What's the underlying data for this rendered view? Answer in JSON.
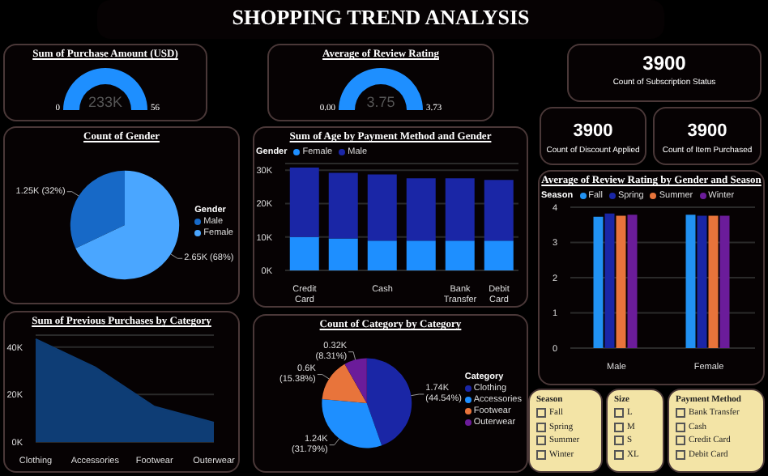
{
  "chart_data": [
    {
      "type": "other",
      "title": "SHOPPING TREND ANALYSIS"
    },
    {
      "type": "other",
      "title": "Sum of Purchase Amount (USD)",
      "annotations": [
        "0",
        "233K",
        "56"
      ]
    },
    {
      "type": "other",
      "title": "Average of Review Rating",
      "annotations": [
        "0.00",
        "3.75",
        "3.73"
      ]
    },
    {
      "type": "other",
      "title": "Count of Subscription Status",
      "annotations": [
        "3900"
      ]
    },
    {
      "type": "other",
      "title": "Count of Discount Applied",
      "annotations": [
        "3900"
      ]
    },
    {
      "type": "other",
      "title": "Count of Item Purchased",
      "annotations": [
        "3900"
      ]
    },
    {
      "type": "pie",
      "title": "Count of Gender",
      "categories": [
        "Male",
        "Female"
      ],
      "values": [
        1250,
        2650
      ],
      "value_labels": [
        "1.25K (32%)",
        "2.65K (68%)"
      ],
      "colors": [
        "#1769c7",
        "#4aa6ff"
      ],
      "legend": "right",
      "legend_title": "Gender"
    },
    {
      "type": "bar",
      "title": "Sum of Age by Payment Method and Gender",
      "stacked": true,
      "categories": [
        "Credit Card",
        null,
        "Cash",
        null,
        "Bank Transfer",
        "Debit Card"
      ],
      "series": [
        {
          "name": "Female",
          "color": "#1e8fff",
          "values": [
            10000,
            9600,
            8900,
            8900,
            8900,
            8900
          ]
        },
        {
          "name": "Male",
          "color": "#1a26a6",
          "values": [
            20800,
            19600,
            19800,
            18700,
            18700,
            18200
          ]
        }
      ],
      "ylim": [
        0,
        32000
      ],
      "yticks": [
        {
          "value": 0,
          "label": "0K"
        },
        {
          "value": 10000,
          "label": "10K"
        },
        {
          "value": 20000,
          "label": "20K"
        },
        {
          "value": 30000,
          "label": "30K"
        }
      ],
      "grid": "y",
      "legend": "top",
      "legend_title": "Gender"
    },
    {
      "type": "bar",
      "title": "Average of Review Rating by Gender and Season",
      "categories": [
        "Male",
        "Female"
      ],
      "series": [
        {
          "name": "Fall",
          "color": "#2192f3",
          "values": [
            3.73,
            3.79
          ]
        },
        {
          "name": "Spring",
          "color": "#1a26a6",
          "values": [
            3.82,
            3.76
          ]
        },
        {
          "name": "Summer",
          "color": "#e8743b",
          "values": [
            3.76,
            3.76
          ]
        },
        {
          "name": "Winter",
          "color": "#6b1c9a",
          "values": [
            3.79,
            3.76
          ]
        }
      ],
      "ylim": [
        0,
        4
      ],
      "yticks": [
        0,
        1,
        2,
        3,
        4
      ],
      "grid": "y",
      "legend": "top",
      "legend_title": "Season"
    },
    {
      "type": "area",
      "title": "Sum of Previous Purchases by Category",
      "categories": [
        "Clothing",
        "Accessories",
        "Footwear",
        "Outerwear"
      ],
      "values": [
        43300,
        31500,
        14900,
        8200
      ],
      "color": "#0e3d75",
      "ylim": [
        0,
        45000
      ],
      "yticks": [
        {
          "value": 0,
          "label": "0K"
        },
        {
          "value": 20000,
          "label": "20K"
        },
        {
          "value": 40000,
          "label": "40K"
        }
      ],
      "grid": "y"
    },
    {
      "type": "pie",
      "title": "Count of Category by Category",
      "categories": [
        "Clothing",
        "Accessories",
        "Footwear",
        "Outerwear"
      ],
      "values": [
        1740,
        1240,
        600,
        320
      ],
      "value_labels": [
        "1.74K (44.54%)",
        "1.24K (31.79%)",
        "0.6K (15.38%)",
        "0.32K (8.31%)"
      ],
      "colors": [
        "#1a26a6",
        "#1e8fff",
        "#e8743b",
        "#6b1c9a"
      ],
      "legend": "right",
      "legend_title": "Category"
    },
    {
      "type": "other",
      "title": "Season",
      "annotations": [
        "Fall",
        "Spring",
        "Summer",
        "Winter"
      ]
    },
    {
      "type": "other",
      "title": "Size",
      "annotations": [
        "L",
        "M",
        "S",
        "XL"
      ]
    },
    {
      "type": "other",
      "title": "Payment Method",
      "annotations": [
        "Bank Transfer",
        "Cash",
        "Credit Card",
        "Debit Card"
      ]
    }
  ]
}
